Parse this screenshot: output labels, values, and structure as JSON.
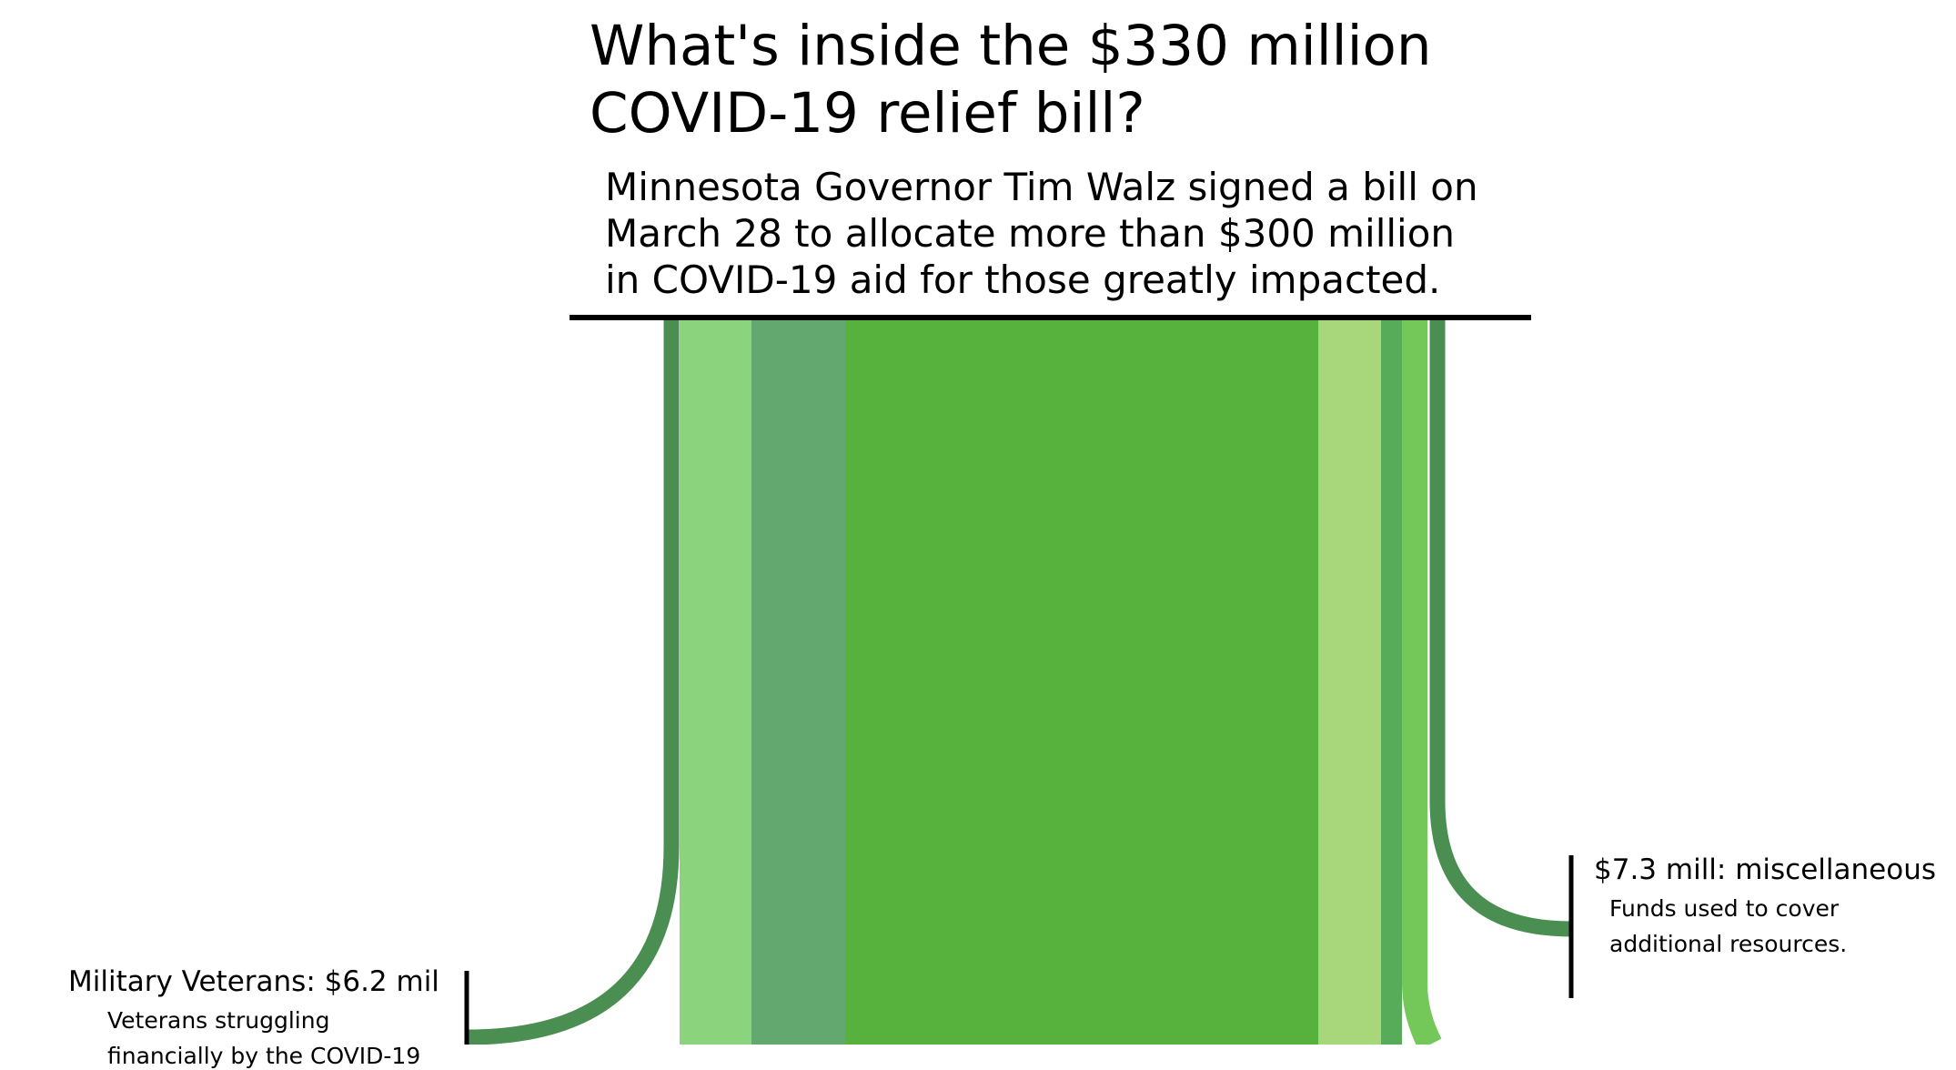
{
  "header": {
    "title_lines": [
      "What's inside the $330 million",
      "COVID-19 relief bill?"
    ],
    "subtitle_lines": [
      "Minnesota Governor Tim Walz signed a bill on",
      "March 28 to allocate more than $300 million",
      "in COVID-19 aid for those greatly impacted."
    ]
  },
  "flows": [
    {
      "key": "veterans",
      "color": "#4a8e52"
    },
    {
      "key": "stream-light-green",
      "color": "#8bd37c"
    },
    {
      "key": "stream-muted-green",
      "color": "#62a86f"
    },
    {
      "key": "stream-main-green",
      "color": "#56b13d"
    },
    {
      "key": "stream-pale-green",
      "color": "#a7d67b"
    },
    {
      "key": "stream-medium-green",
      "color": "#57ac5a"
    },
    {
      "key": "stream-bright-green",
      "color": "#74c85a"
    },
    {
      "key": "miscellaneous",
      "color": "#4a8e52"
    }
  ],
  "labels": {
    "veterans": {
      "head": "Military Veterans: $6.2 mil",
      "desc_lines": [
        "Veterans struggling",
        "financially by the COVID-19"
      ]
    },
    "misc": {
      "head": "$7.3 mill: miscellaneous",
      "desc_lines": [
        "Funds used to cover",
        "additional resources."
      ]
    }
  }
}
